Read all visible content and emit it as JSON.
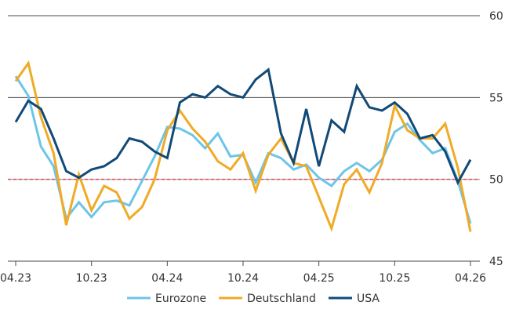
{
  "chart_data": {
    "type": "line",
    "x": [
      "04.23",
      "05.23",
      "06.23",
      "07.23",
      "08.23",
      "09.23",
      "10.23",
      "11.23",
      "12.23",
      "01.24",
      "02.24",
      "03.24",
      "04.24",
      "05.24",
      "06.24",
      "07.24",
      "08.24",
      "09.24",
      "10.24",
      "11.24",
      "12.24",
      "01.25",
      "02.25",
      "03.25",
      "04.25",
      "05.25",
      "06.25",
      "07.25",
      "08.25",
      "09.25",
      "10.25",
      "11.25",
      "12.25",
      "01.26",
      "02.26",
      "03.26",
      "04.26"
    ],
    "x_tick_labels": [
      "04.23",
      "10.23",
      "04.24",
      "10.24",
      "04.25",
      "10.25",
      "04.26"
    ],
    "y_tick_labels": [
      "45",
      "50",
      "55",
      "60"
    ],
    "ylim": [
      45,
      60
    ],
    "y_axis_side": "right",
    "grid": "horizontal at 50, 55, 60",
    "reference_line": {
      "value": 50,
      "color": "#e05060",
      "style": "dashed"
    },
    "legend_position": "bottom",
    "series": [
      {
        "name": "Eurozone",
        "color": "#6cc5ea",
        "values": [
          56.3,
          55.1,
          52.0,
          50.8,
          47.6,
          48.6,
          47.7,
          48.6,
          48.7,
          48.4,
          49.9,
          51.4,
          53.2,
          53.1,
          52.7,
          51.9,
          52.8,
          51.4,
          51.5,
          49.8,
          51.6,
          51.3,
          50.6,
          50.9,
          50.1,
          49.6,
          50.5,
          51.0,
          50.5,
          51.2,
          52.9,
          53.4,
          52.4,
          51.6,
          51.9,
          49.9,
          47.3
        ]
      },
      {
        "name": "Deutschland",
        "color": "#f0aa26",
        "values": [
          56.0,
          57.1,
          53.8,
          51.6,
          47.2,
          50.3,
          48.1,
          49.6,
          49.2,
          47.6,
          48.3,
          50.0,
          53.0,
          54.2,
          53.1,
          52.3,
          51.1,
          50.6,
          51.6,
          49.3,
          51.5,
          52.5,
          51.0,
          50.8,
          48.9,
          47.0,
          49.7,
          50.6,
          49.2,
          51.0,
          54.5,
          53.0,
          52.5,
          52.5,
          53.4,
          50.7,
          46.8
        ]
      },
      {
        "name": "USA",
        "color": "#124a77",
        "values": [
          53.5,
          54.8,
          54.3,
          52.5,
          50.5,
          50.1,
          50.6,
          50.8,
          51.3,
          52.5,
          52.3,
          51.7,
          51.3,
          54.7,
          55.2,
          55.0,
          55.7,
          55.2,
          55.0,
          56.1,
          56.7,
          52.8,
          51.0,
          54.3,
          50.8,
          53.6,
          52.9,
          55.7,
          54.4,
          54.2,
          54.7,
          54.0,
          52.5,
          52.7,
          51.7,
          49.8,
          51.2
        ]
      }
    ]
  }
}
